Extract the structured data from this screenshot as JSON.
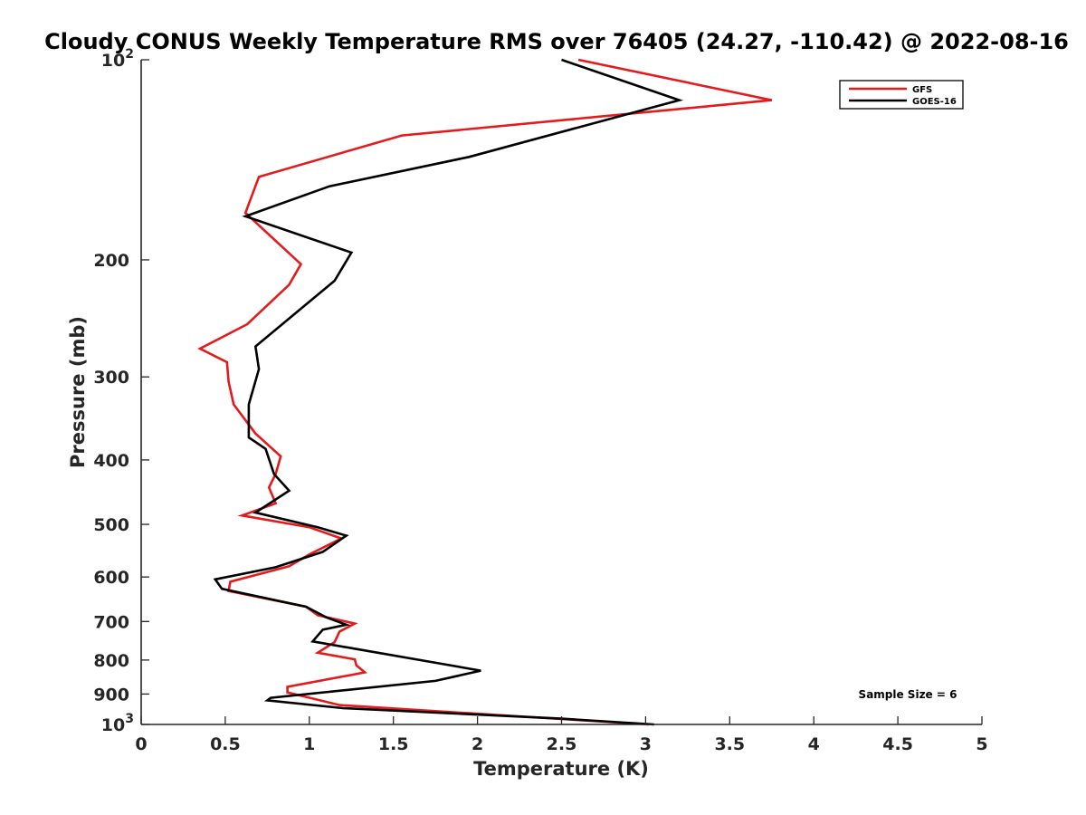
{
  "chart_data": {
    "type": "line",
    "title": "Cloudy CONUS Weekly Temperature RMS over 76405 (24.27, -110.42) @ 2022-08-16",
    "xlabel": "Temperature (K)",
    "ylabel": "Pressure (mb)",
    "xlim": [
      0,
      5
    ],
    "ylim": [
      100,
      1000
    ],
    "y_scale": "log",
    "y_reversed": true,
    "grid": false,
    "legend_position": "top-right",
    "x_ticks": [
      0,
      0.5,
      1,
      1.5,
      2,
      2.5,
      3,
      3.5,
      4,
      4.5,
      5
    ],
    "x_tick_labels": [
      "0",
      "0.5",
      "1",
      "1.5",
      "2",
      "2.5",
      "3",
      "3.5",
      "4",
      "4.5",
      "5"
    ],
    "y_ticks": [
      100,
      200,
      300,
      400,
      500,
      600,
      700,
      800,
      900,
      1000
    ],
    "y_tick_labels": [
      {
        "base": "10",
        "exp": "2"
      },
      {
        "base": "200",
        "exp": ""
      },
      {
        "base": "300",
        "exp": ""
      },
      {
        "base": "400",
        "exp": ""
      },
      {
        "base": "500",
        "exp": ""
      },
      {
        "base": "600",
        "exp": ""
      },
      {
        "base": "700",
        "exp": ""
      },
      {
        "base": "800",
        "exp": ""
      },
      {
        "base": "900",
        "exp": ""
      },
      {
        "base": "10",
        "exp": "3"
      }
    ],
    "annotation": "Sample Size = 6",
    "series": [
      {
        "name": "GFS",
        "color": "#e41a1c",
        "points": [
          [
            2.6,
            100
          ],
          [
            3.75,
            115
          ],
          [
            1.55,
            130
          ],
          [
            0.7,
            150
          ],
          [
            0.62,
            170
          ],
          [
            0.95,
            203
          ],
          [
            0.88,
            218
          ],
          [
            0.63,
            250
          ],
          [
            0.35,
            272
          ],
          [
            0.51,
            285
          ],
          [
            0.52,
            305
          ],
          [
            0.55,
            330
          ],
          [
            0.68,
            365
          ],
          [
            0.83,
            395
          ],
          [
            0.8,
            420
          ],
          [
            0.76,
            440
          ],
          [
            0.8,
            465
          ],
          [
            0.6,
            485
          ],
          [
            1.0,
            505
          ],
          [
            1.19,
            525
          ],
          [
            1.0,
            555
          ],
          [
            0.88,
            578
          ],
          [
            0.53,
            610
          ],
          [
            0.52,
            630
          ],
          [
            0.98,
            665
          ],
          [
            1.05,
            685
          ],
          [
            1.27,
            705
          ],
          [
            1.18,
            725
          ],
          [
            1.15,
            752
          ],
          [
            1.05,
            780
          ],
          [
            1.27,
            798
          ],
          [
            1.28,
            815
          ],
          [
            1.33,
            835
          ],
          [
            0.87,
            878
          ],
          [
            0.87,
            895
          ],
          [
            1.18,
            935
          ],
          [
            2.6,
            985
          ],
          [
            3.02,
            1000
          ]
        ]
      },
      {
        "name": "GOES-16",
        "color": "#000000",
        "points": [
          [
            2.5,
            100
          ],
          [
            3.2,
            115
          ],
          [
            1.95,
            140
          ],
          [
            1.12,
            155
          ],
          [
            0.62,
            172
          ],
          [
            1.25,
            195
          ],
          [
            1.15,
            215
          ],
          [
            0.68,
            270
          ],
          [
            0.7,
            292
          ],
          [
            0.64,
            330
          ],
          [
            0.64,
            370
          ],
          [
            0.74,
            385
          ],
          [
            0.79,
            420
          ],
          [
            0.88,
            445
          ],
          [
            0.68,
            480
          ],
          [
            1.05,
            505
          ],
          [
            1.22,
            520
          ],
          [
            1.08,
            550
          ],
          [
            0.8,
            580
          ],
          [
            0.44,
            605
          ],
          [
            0.48,
            625
          ],
          [
            0.98,
            665
          ],
          [
            1.1,
            690
          ],
          [
            1.22,
            708
          ],
          [
            1.08,
            720
          ],
          [
            1.02,
            750
          ],
          [
            1.28,
            770
          ],
          [
            1.72,
            805
          ],
          [
            2.02,
            830
          ],
          [
            1.75,
            860
          ],
          [
            0.77,
            912
          ],
          [
            0.75,
            920
          ],
          [
            1.2,
            945
          ],
          [
            2.5,
            980
          ],
          [
            3.05,
            1000
          ]
        ]
      }
    ]
  }
}
